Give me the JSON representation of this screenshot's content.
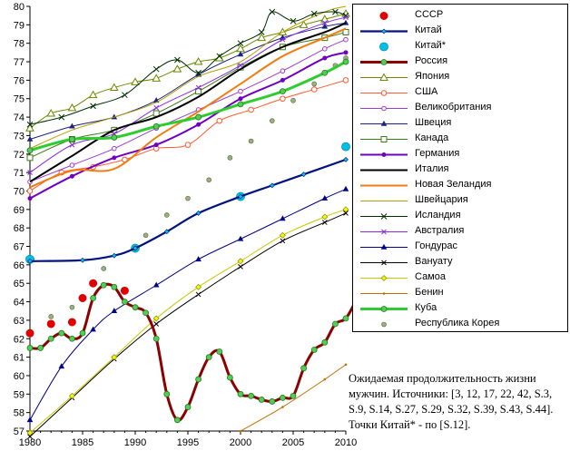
{
  "chart_data": {
    "type": "line",
    "xlim": [
      1980,
      2010
    ],
    "ylim": [
      57,
      80
    ],
    "x_ticks": [
      1980,
      1985,
      1990,
      1995,
      2000,
      2005,
      2010
    ],
    "y_ticks": [
      57,
      58,
      59,
      60,
      61,
      62,
      63,
      64,
      65,
      66,
      67,
      68,
      69,
      70,
      71,
      72,
      73,
      74,
      75,
      76,
      77,
      78,
      79,
      80
    ],
    "grid": false,
    "legend_position": "right",
    "series": [
      {
        "name": "СССР",
        "color": "#e00000",
        "marker": "circle",
        "line": false,
        "points": [
          [
            1980,
            62.3
          ],
          [
            1982,
            62.8
          ],
          [
            1984,
            62.9
          ],
          [
            1985,
            64.2
          ],
          [
            1986,
            65.0
          ],
          [
            1989,
            64.6
          ]
        ]
      },
      {
        "name": "Китай",
        "color": "#00137f",
        "marker": "diamond-small",
        "line": true,
        "width": 2.2,
        "points": [
          [
            1980,
            66.2
          ],
          [
            1985,
            66.25
          ],
          [
            1988,
            66.5
          ],
          [
            1990,
            66.9
          ],
          [
            1993,
            67.8
          ],
          [
            1996,
            68.8
          ],
          [
            2000,
            69.7
          ],
          [
            2003,
            70.3
          ],
          [
            2006,
            70.9
          ],
          [
            2010,
            71.7
          ]
        ]
      },
      {
        "name": "Китай*",
        "color": "#00c0e8",
        "marker": "circle-big",
        "line": false,
        "points": [
          [
            1980,
            66.3
          ],
          [
            1990,
            66.9
          ],
          [
            2000,
            69.7
          ],
          [
            2010,
            72.4
          ]
        ]
      },
      {
        "name": "Россия",
        "color": "#8b0000",
        "marker": "circle-green",
        "line": true,
        "width": 3,
        "points": [
          [
            1980,
            61.5
          ],
          [
            1981,
            61.5
          ],
          [
            1982,
            62.0
          ],
          [
            1983,
            62.3
          ],
          [
            1984,
            62.0
          ],
          [
            1985,
            62.3
          ],
          [
            1986,
            64.2
          ],
          [
            1987,
            64.9
          ],
          [
            1988,
            64.8
          ],
          [
            1989,
            64.0
          ],
          [
            1990,
            63.7
          ],
          [
            1991,
            63.4
          ],
          [
            1992,
            62.0
          ],
          [
            1993,
            59.0
          ],
          [
            1994,
            57.6
          ],
          [
            1995,
            58.3
          ],
          [
            1996,
            59.8
          ],
          [
            1997,
            61.0
          ],
          [
            1998,
            61.3
          ],
          [
            1999,
            59.9
          ],
          [
            2000,
            59.0
          ],
          [
            2001,
            58.9
          ],
          [
            2002,
            58.7
          ],
          [
            2003,
            58.6
          ],
          [
            2004,
            58.8
          ],
          [
            2005,
            58.9
          ],
          [
            2006,
            60.4
          ],
          [
            2007,
            61.4
          ],
          [
            2008,
            61.8
          ],
          [
            2009,
            62.8
          ],
          [
            2010,
            63.1
          ],
          [
            2011,
            64.1
          ]
        ]
      },
      {
        "name": "Япония",
        "color": "#6a8a00",
        "marker": "triangle-open",
        "line": true,
        "width": 1,
        "points": [
          [
            1980,
            73.4
          ],
          [
            1982,
            74.2
          ],
          [
            1984,
            74.5
          ],
          [
            1986,
            75.2
          ],
          [
            1988,
            75.6
          ],
          [
            1990,
            75.9
          ],
          [
            1992,
            76.1
          ],
          [
            1994,
            76.6
          ],
          [
            1996,
            77.0
          ],
          [
            1998,
            77.2
          ],
          [
            2000,
            77.7
          ],
          [
            2002,
            78.3
          ],
          [
            2004,
            78.6
          ],
          [
            2006,
            79.0
          ],
          [
            2008,
            79.3
          ],
          [
            2010,
            79.6
          ]
        ]
      },
      {
        "name": "США",
        "color": "#ff5a30",
        "marker": "circle-open",
        "line": true,
        "width": 1,
        "points": [
          [
            1980,
            70.0
          ],
          [
            1983,
            71.0
          ],
          [
            1986,
            71.3
          ],
          [
            1989,
            71.7
          ],
          [
            1992,
            72.3
          ],
          [
            1995,
            72.5
          ],
          [
            1998,
            73.8
          ],
          [
            2001,
            74.4
          ],
          [
            2004,
            75.0
          ],
          [
            2007,
            75.5
          ],
          [
            2010,
            76.0
          ]
        ]
      },
      {
        "name": "Великобритания",
        "color": "#9e3ecf",
        "marker": "circle-open-small",
        "line": true,
        "width": 1,
        "points": [
          [
            1980,
            70.5
          ],
          [
            1984,
            71.4
          ],
          [
            1988,
            72.3
          ],
          [
            1992,
            73.4
          ],
          [
            1996,
            74.4
          ],
          [
            2000,
            75.4
          ],
          [
            2004,
            76.5
          ],
          [
            2008,
            77.7
          ],
          [
            2010,
            78.2
          ]
        ]
      },
      {
        "name": "Швеция",
        "color": "#1a237e",
        "marker": "triangle-small",
        "line": true,
        "width": 1,
        "points": [
          [
            1980,
            72.8
          ],
          [
            1984,
            73.5
          ],
          [
            1988,
            74.0
          ],
          [
            1992,
            74.9
          ],
          [
            1996,
            76.3
          ],
          [
            2000,
            77.4
          ],
          [
            2004,
            78.3
          ],
          [
            2008,
            78.9
          ],
          [
            2010,
            79.1
          ]
        ]
      },
      {
        "name": "Канада",
        "color": "#3a7d1a",
        "marker": "square-open",
        "line": true,
        "width": 1,
        "points": [
          [
            1980,
            71.8
          ],
          [
            1984,
            72.8
          ],
          [
            1988,
            73.3
          ],
          [
            1992,
            74.2
          ],
          [
            1996,
            75.4
          ],
          [
            2000,
            76.7
          ],
          [
            2004,
            77.8
          ],
          [
            2008,
            78.3
          ],
          [
            2010,
            78.6
          ]
        ]
      },
      {
        "name": "Германия",
        "color": "#7000c0",
        "marker": "circle-small",
        "line": true,
        "width": 2,
        "points": [
          [
            1980,
            69.6
          ],
          [
            1984,
            70.8
          ],
          [
            1988,
            71.8
          ],
          [
            1992,
            72.5
          ],
          [
            1996,
            73.6
          ],
          [
            2000,
            75.0
          ],
          [
            2004,
            76.0
          ],
          [
            2008,
            77.2
          ],
          [
            2010,
            77.5
          ]
        ]
      },
      {
        "name": "Италия",
        "color": "#000000",
        "marker": "none",
        "line": true,
        "width": 2,
        "points": [
          [
            1980,
            70.5
          ],
          [
            1984,
            71.9
          ],
          [
            1988,
            73.3
          ],
          [
            1992,
            74.0
          ],
          [
            1996,
            75.1
          ],
          [
            2000,
            76.6
          ],
          [
            2004,
            77.8
          ],
          [
            2008,
            78.6
          ],
          [
            2010,
            79.1
          ]
        ]
      },
      {
        "name": "Новая Зеландия",
        "color": "#f07d10",
        "marker": "none",
        "line": true,
        "width": 2,
        "points": [
          [
            1980,
            70.2
          ],
          [
            1984,
            71.1
          ],
          [
            1988,
            71.2
          ],
          [
            1992,
            72.9
          ],
          [
            1996,
            74.3
          ],
          [
            2000,
            75.8
          ],
          [
            2004,
            77.3
          ],
          [
            2008,
            78.3
          ],
          [
            2010,
            78.8
          ]
        ]
      },
      {
        "name": "Швейцария",
        "color": "#b7a000",
        "marker": "none",
        "line": true,
        "width": 1,
        "points": [
          [
            1980,
            72.3
          ],
          [
            1984,
            73.3
          ],
          [
            1988,
            74.0
          ],
          [
            1992,
            74.8
          ],
          [
            1996,
            76.2
          ],
          [
            2000,
            77.0
          ],
          [
            2004,
            78.6
          ],
          [
            2008,
            79.7
          ],
          [
            2010,
            80.0
          ]
        ]
      },
      {
        "name": "Исландия",
        "color": "#003000",
        "marker": "x",
        "line": true,
        "width": 1,
        "points": [
          [
            1980,
            73.6
          ],
          [
            1983,
            74.0
          ],
          [
            1986,
            74.6
          ],
          [
            1989,
            75.2
          ],
          [
            1992,
            76.6
          ],
          [
            1994,
            77.1
          ],
          [
            1996,
            76.4
          ],
          [
            1998,
            77.3
          ],
          [
            2000,
            78.0
          ],
          [
            2002,
            78.6
          ],
          [
            2003,
            79.7
          ],
          [
            2005,
            79.2
          ],
          [
            2007,
            79.6
          ],
          [
            2009,
            79.7
          ],
          [
            2010,
            79.5
          ]
        ]
      },
      {
        "name": "Австралия",
        "color": "#8a2be2",
        "marker": "x-small",
        "line": true,
        "width": 1,
        "points": [
          [
            1980,
            71.0
          ],
          [
            1984,
            72.5
          ],
          [
            1988,
            73.1
          ],
          [
            1992,
            74.5
          ],
          [
            1996,
            75.6
          ],
          [
            2000,
            76.8
          ],
          [
            2004,
            78.2
          ],
          [
            2008,
            79.1
          ],
          [
            2010,
            79.4
          ]
        ]
      },
      {
        "name": "Гондурас",
        "color": "#00008b",
        "marker": "triangle-small-filled",
        "line": true,
        "width": 1,
        "points": [
          [
            1980,
            57.6
          ],
          [
            1983,
            60.5
          ],
          [
            1986,
            62.5
          ],
          [
            1988,
            63.5
          ],
          [
            1992,
            64.9
          ],
          [
            1996,
            66.3
          ],
          [
            2000,
            67.4
          ],
          [
            2004,
            68.5
          ],
          [
            2008,
            69.6
          ],
          [
            2010,
            70.1
          ]
        ]
      },
      {
        "name": "Вануату",
        "color": "#000000",
        "marker": "x-small",
        "line": true,
        "width": 1,
        "points": [
          [
            1980,
            56.7
          ],
          [
            1984,
            58.8
          ],
          [
            1988,
            60.9
          ],
          [
            1992,
            62.8
          ],
          [
            1996,
            64.4
          ],
          [
            2000,
            65.9
          ],
          [
            2004,
            67.3
          ],
          [
            2008,
            68.3
          ],
          [
            2010,
            68.8
          ]
        ]
      },
      {
        "name": "Самоа",
        "color": "#c8c800",
        "marker": "diamond-yellow",
        "line": true,
        "width": 1,
        "points": [
          [
            1980,
            56.9
          ],
          [
            1984,
            58.9
          ],
          [
            1988,
            61.0
          ],
          [
            1992,
            63.1
          ],
          [
            1996,
            64.8
          ],
          [
            2000,
            66.2
          ],
          [
            2004,
            67.6
          ],
          [
            2008,
            68.6
          ],
          [
            2010,
            69.0
          ]
        ]
      },
      {
        "name": "Бенин",
        "color": "#c47000",
        "marker": "dot-tiny",
        "line": true,
        "width": 1,
        "points": [
          [
            2000,
            57.0
          ],
          [
            2004,
            58.3
          ],
          [
            2008,
            59.8
          ],
          [
            2010,
            60.6
          ]
        ]
      },
      {
        "name": "Куба",
        "color": "#2ecc2e",
        "marker": "circle-green",
        "line": true,
        "width": 3,
        "points": [
          [
            1980,
            72.2
          ],
          [
            1984,
            72.8
          ],
          [
            1988,
            72.9
          ],
          [
            1992,
            73.5
          ],
          [
            1996,
            74.0
          ],
          [
            2000,
            74.7
          ],
          [
            2004,
            75.4
          ],
          [
            2008,
            76.4
          ],
          [
            2010,
            77.0
          ]
        ]
      },
      {
        "name": "Республика Корея",
        "color": "#556b2f",
        "marker": "circle-gray",
        "line": false,
        "points": [
          [
            1982,
            63.2
          ],
          [
            1984,
            63.7
          ],
          [
            1987,
            65.8
          ],
          [
            1990,
            66.9
          ],
          [
            1991,
            67.6
          ],
          [
            1993,
            68.7
          ],
          [
            1995,
            69.6
          ],
          [
            1997,
            70.6
          ],
          [
            1999,
            71.8
          ],
          [
            2001,
            72.7
          ],
          [
            2003,
            73.8
          ],
          [
            2005,
            74.9
          ],
          [
            2007,
            75.8
          ],
          [
            2009,
            76.8
          ],
          [
            2010,
            77.2
          ]
        ]
      }
    ]
  },
  "caption": {
    "text": "Ожидаемая продолжительность жизни мужчин. Источники: [3, 12, 17, 22, 42, S.3, S.9, S.14, S.27, S.29, S.32, S.39, S.43, S.44]. Точки Китай* - по [S.12]."
  }
}
